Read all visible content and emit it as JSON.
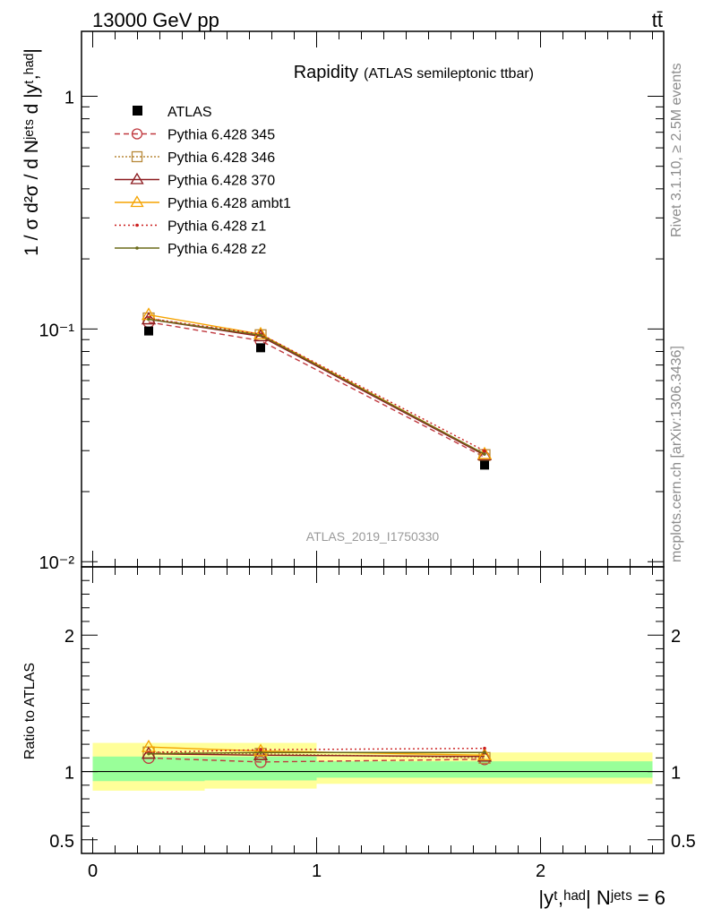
{
  "header": {
    "energy_label": "13000 GeV pp",
    "process_label": "tt̄"
  },
  "side_labels": {
    "rivet": "Rivet 3.1.10, ≥ 2.5M events",
    "source": "mcplots.cern.ch [arXiv:1306.3436]"
  },
  "chart_data": [
    {
      "type": "line",
      "panel": "main",
      "title": "Rapidity",
      "subtitle": "(ATLAS semileptonic ttbar)",
      "ylabel": "1 / σ d²σ / d Nʲᵉᵗˢ d |yᵗ,ʰᵃᵈ|",
      "yscale": "log",
      "ylim": [
        0.0095,
        1.9
      ],
      "xlim": [
        -0.05,
        2.55
      ],
      "ytick_labels": [
        "1",
        "10⁻¹",
        "10⁻²"
      ],
      "ytick_values": [
        1,
        0.1,
        0.01
      ],
      "watermark": "ATLAS_2019_I1750330",
      "legend_position": "top-left",
      "data": {
        "name": "ATLAS",
        "x": [
          0.25,
          0.75,
          1.75
        ],
        "y": [
          0.098,
          0.083,
          0.026
        ]
      },
      "series": [
        {
          "name": "Pythia 6.428 345",
          "color": "#c0393f",
          "dash": "6,4",
          "marker": "circle-open",
          "x": [
            0.25,
            0.75,
            1.75
          ],
          "y": [
            0.107,
            0.089,
            0.0281
          ]
        },
        {
          "name": "Pythia 6.428 346",
          "color": "#b8893a",
          "dash": "2,2",
          "marker": "square-open",
          "x": [
            0.25,
            0.75,
            1.75
          ],
          "y": [
            0.111,
            0.094,
            0.0287
          ]
        },
        {
          "name": "Pythia 6.428 370",
          "color": "#8b1a1f",
          "dash": "",
          "marker": "triangle-open",
          "x": [
            0.25,
            0.75,
            1.75
          ],
          "y": [
            0.11,
            0.093,
            0.0287
          ]
        },
        {
          "name": "Pythia 6.428 ambt1",
          "color": "#f5a300",
          "dash": "",
          "marker": "triangle-open",
          "x": [
            0.25,
            0.75,
            1.75
          ],
          "y": [
            0.115,
            0.095,
            0.029
          ]
        },
        {
          "name": "Pythia 6.428 z1",
          "color": "#cc1f1f",
          "dash": "2,3",
          "marker": "dot",
          "x": [
            0.25,
            0.75,
            1.75
          ],
          "y": [
            0.111,
            0.095,
            0.0299
          ]
        },
        {
          "name": "Pythia 6.428 z2",
          "color": "#6b6b1a",
          "dash": "",
          "marker": "dot",
          "x": [
            0.25,
            0.75,
            1.75
          ],
          "y": [
            0.11,
            0.094,
            0.029
          ]
        }
      ]
    },
    {
      "type": "line",
      "panel": "ratio",
      "ylabel": "Ratio to ATLAS",
      "xlabel": "|yᵗ,ʰᵃᵈ| Nʲᵉᵗˢ = 6",
      "ylim": [
        0.4,
        2.5
      ],
      "xlim": [
        -0.05,
        2.55
      ],
      "ytick_labels": [
        "0.5",
        "1",
        "2"
      ],
      "ytick_values": [
        0.5,
        1,
        2
      ],
      "xtick_labels": [
        "0",
        "1",
        "2"
      ],
      "xtick_values": [
        0,
        1,
        2
      ],
      "bands": [
        {
          "x0": 0.0,
          "x1": 0.5,
          "stat_lo": 0.93,
          "stat_hi": 1.11,
          "tot_lo": 0.86,
          "tot_hi": 1.21
        },
        {
          "x0": 0.5,
          "x1": 1.0,
          "stat_lo": 0.935,
          "stat_hi": 1.11,
          "tot_lo": 0.875,
          "tot_hi": 1.21
        },
        {
          "x0": 1.0,
          "x1": 2.5,
          "stat_lo": 0.955,
          "stat_hi": 1.075,
          "tot_lo": 0.91,
          "tot_hi": 1.14
        }
      ],
      "series": [
        {
          "name": "Pythia 6.428 345",
          "x": [
            0.25,
            0.75,
            1.75
          ],
          "y": [
            1.1,
            1.07,
            1.09
          ]
        },
        {
          "name": "Pythia 6.428 346",
          "x": [
            0.25,
            0.75,
            1.75
          ],
          "y": [
            1.14,
            1.13,
            1.1
          ]
        },
        {
          "name": "Pythia 6.428 370",
          "x": [
            0.25,
            0.75,
            1.75
          ],
          "y": [
            1.13,
            1.12,
            1.11
          ]
        },
        {
          "name": "Pythia 6.428 ambt1",
          "x": [
            0.25,
            0.75,
            1.75
          ],
          "y": [
            1.18,
            1.15,
            1.12
          ]
        },
        {
          "name": "Pythia 6.428 z1",
          "x": [
            0.25,
            0.75,
            1.75
          ],
          "y": [
            1.14,
            1.16,
            1.17
          ]
        },
        {
          "name": "Pythia 6.428 z2",
          "x": [
            0.25,
            0.75,
            1.75
          ],
          "y": [
            1.13,
            1.14,
            1.14
          ]
        }
      ]
    }
  ]
}
